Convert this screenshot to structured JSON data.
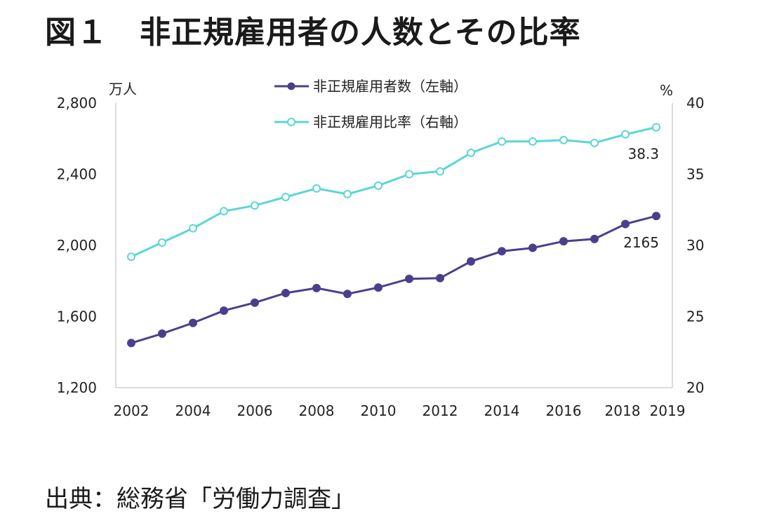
{
  "title": "図１　非正規雇用者の人数とその比率",
  "source": "出典：総務省「労働力調査」",
  "chart_data": {
    "type": "line",
    "x": [
      2002,
      2003,
      2004,
      2005,
      2006,
      2007,
      2008,
      2009,
      2010,
      2011,
      2012,
      2013,
      2014,
      2015,
      2016,
      2017,
      2018,
      2019
    ],
    "x_tick_labels": [
      "2002",
      "2004",
      "2006",
      "2008",
      "2010",
      "2012",
      "2014",
      "2016",
      "2018",
      "2019"
    ],
    "left_axis": {
      "unit": "万人",
      "ylim": [
        1200,
        2800
      ],
      "ticks": [
        "1,200",
        "1,600",
        "2,000",
        "2,400",
        "2,800"
      ]
    },
    "right_axis": {
      "unit": "%",
      "ylim": [
        20,
        40
      ],
      "ticks": [
        "20",
        "25",
        "30",
        "35",
        "40"
      ]
    },
    "series": [
      {
        "name": "非正規雇用者数（左軸）",
        "axis": "left",
        "color": "#4b3f8c",
        "marker": "filled",
        "values": [
          1451,
          1504,
          1564,
          1633,
          1678,
          1732,
          1760,
          1727,
          1763,
          1812,
          1816,
          1910,
          1967,
          1986,
          2023,
          2036,
          2120,
          2165
        ]
      },
      {
        "name": "非正規雇用比率（右軸）",
        "axis": "right",
        "color": "#5bd6d6",
        "marker": "open",
        "values": [
          29.2,
          30.2,
          31.2,
          32.4,
          32.8,
          33.4,
          34.0,
          33.6,
          34.2,
          35.0,
          35.2,
          36.5,
          37.3,
          37.3,
          37.4,
          37.2,
          37.8,
          38.3
        ]
      }
    ],
    "data_labels": [
      {
        "series": 1,
        "index": 17,
        "text": "38.3"
      },
      {
        "series": 0,
        "index": 17,
        "text": "2165"
      }
    ],
    "legend": "top-center",
    "grid": false
  }
}
